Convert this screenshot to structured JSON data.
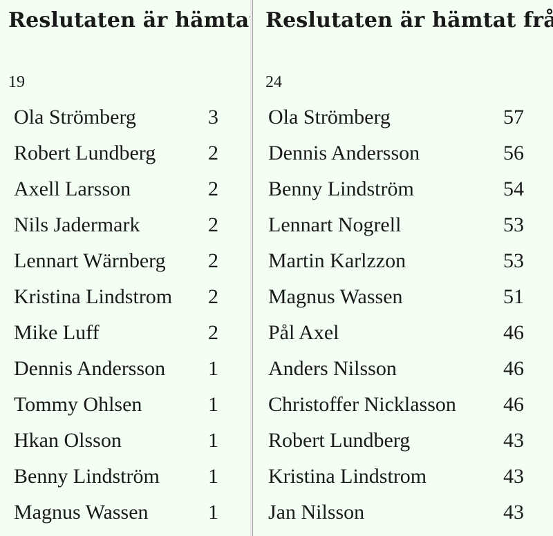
{
  "left_panel": {
    "title": "Reslutaten är hämtat från",
    "count": "19",
    "rows": [
      {
        "name": "Ola Strömberg",
        "score": "3"
      },
      {
        "name": "Robert Lundberg",
        "score": "2"
      },
      {
        "name": "Axell Larsson",
        "score": "2"
      },
      {
        "name": "Nils Jadermark",
        "score": "2"
      },
      {
        "name": "Lennart Wärnberg",
        "score": "2"
      },
      {
        "name": "Kristina Lindstrom",
        "score": "2"
      },
      {
        "name": "Mike Luff",
        "score": "2"
      },
      {
        "name": "Dennis Andersson",
        "score": "1"
      },
      {
        "name": "Tommy Ohlsen",
        "score": "1"
      },
      {
        "name": "Hkan Olsson",
        "score": "1"
      },
      {
        "name": "Benny Lindström",
        "score": "1"
      },
      {
        "name": "Magnus Wassen",
        "score": "1"
      }
    ]
  },
  "right_panel": {
    "title": "Reslutaten är hämtat från",
    "count": "24",
    "rows": [
      {
        "name": "Ola Strömberg",
        "score": "57"
      },
      {
        "name": "Dennis Andersson",
        "score": "56"
      },
      {
        "name": "Benny Lindström",
        "score": "54"
      },
      {
        "name": "Lennart Nogrell",
        "score": "53"
      },
      {
        "name": "Martin Karlzzon",
        "score": "53"
      },
      {
        "name": "Magnus Wassen",
        "score": "51"
      },
      {
        "name": "Pål Axel",
        "score": "46"
      },
      {
        "name": "Anders Nilsson",
        "score": "46"
      },
      {
        "name": "Christoffer Nicklasson",
        "score": "46"
      },
      {
        "name": "Robert Lundberg",
        "score": "43"
      },
      {
        "name": "Kristina Lindstrom",
        "score": "43"
      },
      {
        "name": "Jan Nilsson",
        "score": "43"
      }
    ]
  },
  "colors": {
    "background": "#f3fff3",
    "text": "#1a1a1a"
  }
}
